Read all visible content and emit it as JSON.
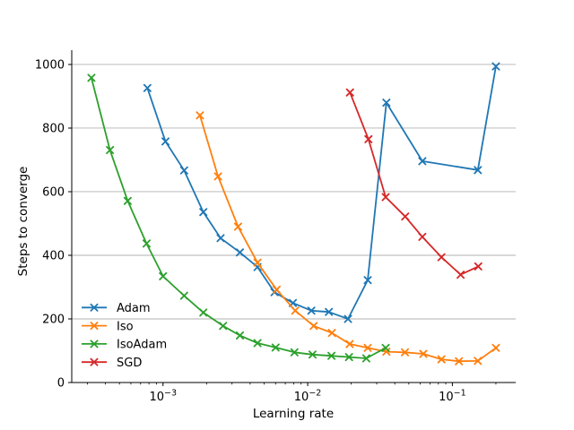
{
  "figure": {
    "background": "#ffffff"
  },
  "chart_data": {
    "type": "line",
    "title": "",
    "xlabel": "Learning rate",
    "ylabel": "Steps to converge",
    "x_scale": "log",
    "xlim": [
      0.000234,
      0.274
    ],
    "ylim": [
      0,
      1045
    ],
    "y_ticks": [
      0,
      200,
      400,
      600,
      800,
      1000
    ],
    "x_major_tick_exponents": [
      -3,
      -2,
      -1
    ],
    "grid": "horizontal",
    "grid_color": "#b0b0b0",
    "axis_color": "#000000",
    "legend_position": "lower left",
    "legend_frame": false,
    "marker": "x",
    "series": [
      {
        "name": "Adam",
        "color": "#1f77b4",
        "points": [
          [
            0.00078,
            926
          ],
          [
            0.00104,
            758
          ],
          [
            0.0014,
            667
          ],
          [
            0.0019,
            536
          ],
          [
            0.0025,
            454
          ],
          [
            0.0034,
            409
          ],
          [
            0.0045,
            363
          ],
          [
            0.0059,
            284
          ],
          [
            0.0079,
            250
          ],
          [
            0.0106,
            226
          ],
          [
            0.014,
            222
          ],
          [
            0.019,
            200
          ],
          [
            0.026,
            322
          ],
          [
            0.035,
            880
          ],
          [
            0.062,
            696
          ],
          [
            0.15,
            668
          ],
          [
            0.2,
            994
          ]
        ]
      },
      {
        "name": "Iso",
        "color": "#ff7f0e",
        "points": [
          [
            0.0018,
            840
          ],
          [
            0.0024,
            648
          ],
          [
            0.0033,
            490
          ],
          [
            0.0045,
            377
          ],
          [
            0.0061,
            292
          ],
          [
            0.0082,
            226
          ],
          [
            0.011,
            178
          ],
          [
            0.0147,
            156
          ],
          [
            0.0195,
            121
          ],
          [
            0.026,
            109
          ],
          [
            0.035,
            97
          ],
          [
            0.047,
            95
          ],
          [
            0.063,
            90
          ],
          [
            0.084,
            73
          ],
          [
            0.111,
            67
          ],
          [
            0.15,
            68
          ],
          [
            0.2,
            109
          ]
        ]
      },
      {
        "name": "IsoAdam",
        "color": "#2ca02c",
        "points": [
          [
            0.00032,
            958
          ],
          [
            0.00043,
            731
          ],
          [
            0.00057,
            571
          ],
          [
            0.00077,
            437
          ],
          [
            0.001,
            334
          ],
          [
            0.0014,
            273
          ],
          [
            0.0019,
            220
          ],
          [
            0.0026,
            178
          ],
          [
            0.0034,
            148
          ],
          [
            0.0045,
            124
          ],
          [
            0.006,
            110
          ],
          [
            0.0081,
            95
          ],
          [
            0.0108,
            88
          ],
          [
            0.0146,
            84
          ],
          [
            0.0193,
            80
          ],
          [
            0.0254,
            76
          ],
          [
            0.0346,
            109
          ]
        ]
      },
      {
        "name": "SGD",
        "color": "#d62728",
        "points": [
          [
            0.0196,
            912
          ],
          [
            0.0263,
            765
          ],
          [
            0.0346,
            583
          ],
          [
            0.0472,
            522
          ],
          [
            0.062,
            458
          ],
          [
            0.084,
            394
          ],
          [
            0.114,
            339
          ],
          [
            0.151,
            365
          ]
        ]
      }
    ]
  }
}
